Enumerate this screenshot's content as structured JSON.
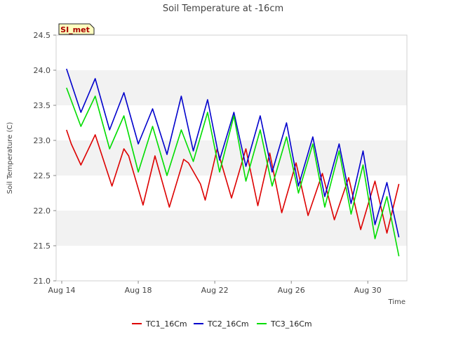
{
  "chart_data": {
    "type": "line",
    "title": "Soil Temperature at -16cm",
    "site_badge": "SI_met",
    "xlabel": "Time",
    "ylabel": "Soil Temperature (C)",
    "x_range": [
      "2023-08-14",
      "2023-08-31 18:00"
    ],
    "ylim": [
      21.0,
      24.5
    ],
    "x_ticks": [
      {
        "date": "2023-08-14",
        "label": "Aug 14"
      },
      {
        "date": "2023-08-18",
        "label": "Aug 18"
      },
      {
        "date": "2023-08-22",
        "label": "Aug 22"
      },
      {
        "date": "2023-08-26",
        "label": "Aug 26"
      },
      {
        "date": "2023-08-30",
        "label": "Aug 30"
      }
    ],
    "y_ticks": [
      "21.0",
      "21.5",
      "22.0",
      "22.5",
      "23.0",
      "23.5",
      "24.0",
      "24.5"
    ],
    "grid": "alternating horizontal bands",
    "legend_position": "bottom-center",
    "series": [
      {
        "name": "TC1_16Cm",
        "color": "#dd0000",
        "points": [
          [
            "2023-08-14 06:00",
            23.15
          ],
          [
            "2023-08-14 12:00",
            22.95
          ],
          [
            "2023-08-15 00:00",
            22.65
          ],
          [
            "2023-08-15 18:00",
            23.08
          ],
          [
            "2023-08-16 15:00",
            22.35
          ],
          [
            "2023-08-17 06:00",
            22.88
          ],
          [
            "2023-08-17 12:00",
            22.78
          ],
          [
            "2023-08-18 06:00",
            22.08
          ],
          [
            "2023-08-18 21:00",
            22.78
          ],
          [
            "2023-08-19 15:00",
            22.05
          ],
          [
            "2023-08-20 09:00",
            22.73
          ],
          [
            "2023-08-20 15:00",
            22.68
          ],
          [
            "2023-08-21 06:00",
            22.38
          ],
          [
            "2023-08-21 12:00",
            22.15
          ],
          [
            "2023-08-22 03:00",
            22.88
          ],
          [
            "2023-08-22 21:00",
            22.18
          ],
          [
            "2023-08-23 15:00",
            22.88
          ],
          [
            "2023-08-24 06:00",
            22.07
          ],
          [
            "2023-08-24 21:00",
            22.82
          ],
          [
            "2023-08-25 12:00",
            21.97
          ],
          [
            "2023-08-26 06:00",
            22.68
          ],
          [
            "2023-08-26 21:00",
            21.93
          ],
          [
            "2023-08-27 15:00",
            22.53
          ],
          [
            "2023-08-28 06:00",
            21.87
          ],
          [
            "2023-08-29 00:00",
            22.47
          ],
          [
            "2023-08-29 15:00",
            21.73
          ],
          [
            "2023-08-30 09:00",
            22.42
          ],
          [
            "2023-08-31 00:00",
            21.68
          ],
          [
            "2023-08-31 15:00",
            22.38
          ]
        ]
      },
      {
        "name": "TC2_16Cm",
        "color": "#0000cc",
        "points": [
          [
            "2023-08-14 06:00",
            24.02
          ],
          [
            "2023-08-15 00:00",
            23.4
          ],
          [
            "2023-08-15 18:00",
            23.88
          ],
          [
            "2023-08-16 12:00",
            23.15
          ],
          [
            "2023-08-17 06:00",
            23.68
          ],
          [
            "2023-08-18 00:00",
            22.95
          ],
          [
            "2023-08-18 18:00",
            23.45
          ],
          [
            "2023-08-19 12:00",
            22.8
          ],
          [
            "2023-08-20 06:00",
            23.63
          ],
          [
            "2023-08-20 21:00",
            22.85
          ],
          [
            "2023-08-21 15:00",
            23.58
          ],
          [
            "2023-08-22 06:00",
            22.72
          ],
          [
            "2023-08-23 00:00",
            23.4
          ],
          [
            "2023-08-23 15:00",
            22.63
          ],
          [
            "2023-08-24 09:00",
            23.35
          ],
          [
            "2023-08-25 00:00",
            22.55
          ],
          [
            "2023-08-25 18:00",
            23.25
          ],
          [
            "2023-08-26 09:00",
            22.35
          ],
          [
            "2023-08-27 03:00",
            23.05
          ],
          [
            "2023-08-27 18:00",
            22.2
          ],
          [
            "2023-08-28 12:00",
            22.95
          ],
          [
            "2023-08-29 03:00",
            22.1
          ],
          [
            "2023-08-29 18:00",
            22.85
          ],
          [
            "2023-08-30 09:00",
            21.8
          ],
          [
            "2023-08-31 00:00",
            22.4
          ],
          [
            "2023-08-31 15:00",
            21.62
          ]
        ]
      },
      {
        "name": "TC3_16Cm",
        "color": "#00dd00",
        "points": [
          [
            "2023-08-14 06:00",
            23.75
          ],
          [
            "2023-08-15 00:00",
            23.2
          ],
          [
            "2023-08-15 18:00",
            23.63
          ],
          [
            "2023-08-16 12:00",
            22.88
          ],
          [
            "2023-08-17 06:00",
            23.35
          ],
          [
            "2023-08-18 00:00",
            22.55
          ],
          [
            "2023-08-18 18:00",
            23.2
          ],
          [
            "2023-08-19 12:00",
            22.5
          ],
          [
            "2023-08-20 06:00",
            23.15
          ],
          [
            "2023-08-20 21:00",
            22.7
          ],
          [
            "2023-08-21 15:00",
            23.4
          ],
          [
            "2023-08-22 06:00",
            22.55
          ],
          [
            "2023-08-23 00:00",
            23.35
          ],
          [
            "2023-08-23 15:00",
            22.42
          ],
          [
            "2023-08-24 09:00",
            23.15
          ],
          [
            "2023-08-25 00:00",
            22.35
          ],
          [
            "2023-08-25 18:00",
            23.05
          ],
          [
            "2023-08-26 09:00",
            22.25
          ],
          [
            "2023-08-27 03:00",
            22.95
          ],
          [
            "2023-08-27 18:00",
            22.05
          ],
          [
            "2023-08-28 12:00",
            22.85
          ],
          [
            "2023-08-29 03:00",
            21.95
          ],
          [
            "2023-08-29 18:00",
            22.65
          ],
          [
            "2023-08-30 09:00",
            21.6
          ],
          [
            "2023-08-31 00:00",
            22.2
          ],
          [
            "2023-08-31 15:00",
            21.35
          ]
        ]
      }
    ]
  }
}
